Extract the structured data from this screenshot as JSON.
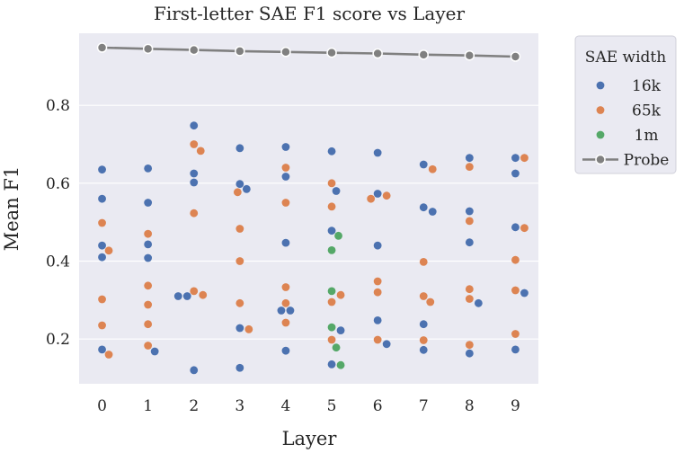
{
  "chart_data": {
    "type": "scatter",
    "title": "First-letter SAE F1 score vs Layer",
    "xlabel": "Layer",
    "ylabel": "Mean F1",
    "x_ticks": [
      "0",
      "1",
      "2",
      "3",
      "4",
      "5",
      "6",
      "7",
      "8",
      "9"
    ],
    "y_ticks": [
      "0.2",
      "0.4",
      "0.6",
      "0.8"
    ],
    "xlim": [
      -0.5,
      9.5
    ],
    "ylim": [
      0.085,
      0.985
    ],
    "grid": true,
    "legend": {
      "title": "SAE width",
      "position": "outside-right",
      "entries": [
        "16k",
        "65k",
        "1m",
        "Probe"
      ]
    },
    "colors": {
      "16k": "#4c72b0",
      "65k": "#dd8452",
      "1m": "#55a868",
      "Probe": "#808080",
      "background": "#eaeaf2",
      "grid": "#ffffff"
    },
    "series": [
      {
        "name": "16k",
        "points": [
          [
            0,
            0.635
          ],
          [
            0,
            0.56
          ],
          [
            0,
            0.44
          ],
          [
            0,
            0.41
          ],
          [
            0,
            0.173
          ],
          [
            1,
            0.638
          ],
          [
            1,
            0.55
          ],
          [
            1,
            0.443
          ],
          [
            1,
            0.408
          ],
          [
            1,
            0.168
          ],
          [
            2,
            0.748
          ],
          [
            2,
            0.625
          ],
          [
            2,
            0.602
          ],
          [
            2,
            0.31
          ],
          [
            2,
            0.31
          ],
          [
            2,
            0.12
          ],
          [
            3,
            0.69
          ],
          [
            3,
            0.598
          ],
          [
            3,
            0.585
          ],
          [
            3,
            0.228
          ],
          [
            3,
            0.126
          ],
          [
            4,
            0.693
          ],
          [
            4,
            0.617
          ],
          [
            4,
            0.447
          ],
          [
            4,
            0.273
          ],
          [
            4,
            0.273
          ],
          [
            4,
            0.17
          ],
          [
            5,
            0.682
          ],
          [
            5,
            0.58
          ],
          [
            5,
            0.478
          ],
          [
            5,
            0.222
          ],
          [
            5,
            0.135
          ],
          [
            6,
            0.678
          ],
          [
            6,
            0.573
          ],
          [
            6,
            0.44
          ],
          [
            6,
            0.248
          ],
          [
            6,
            0.187
          ],
          [
            7,
            0.648
          ],
          [
            7,
            0.538
          ],
          [
            7,
            0.527
          ],
          [
            7,
            0.238
          ],
          [
            7,
            0.172
          ],
          [
            8,
            0.665
          ],
          [
            8,
            0.528
          ],
          [
            8,
            0.448
          ],
          [
            8,
            0.292
          ],
          [
            8,
            0.163
          ],
          [
            9,
            0.665
          ],
          [
            9,
            0.625
          ],
          [
            9,
            0.487
          ],
          [
            9,
            0.318
          ],
          [
            9,
            0.173
          ]
        ]
      },
      {
        "name": "65k",
        "points": [
          [
            0,
            0.498
          ],
          [
            0,
            0.427
          ],
          [
            0,
            0.302
          ],
          [
            0,
            0.235
          ],
          [
            0,
            0.16
          ],
          [
            1,
            0.47
          ],
          [
            1,
            0.337
          ],
          [
            1,
            0.288
          ],
          [
            1,
            0.238
          ],
          [
            1,
            0.183
          ],
          [
            2,
            0.7
          ],
          [
            2,
            0.683
          ],
          [
            2,
            0.523
          ],
          [
            2,
            0.323
          ],
          [
            2,
            0.313
          ],
          [
            3,
            0.577
          ],
          [
            3,
            0.483
          ],
          [
            3,
            0.4
          ],
          [
            3,
            0.292
          ],
          [
            3,
            0.225
          ],
          [
            4,
            0.64
          ],
          [
            4,
            0.55
          ],
          [
            4,
            0.333
          ],
          [
            4,
            0.292
          ],
          [
            4,
            0.242
          ],
          [
            5,
            0.6
          ],
          [
            5,
            0.54
          ],
          [
            5,
            0.313
          ],
          [
            5,
            0.295
          ],
          [
            5,
            0.198
          ],
          [
            6,
            0.568
          ],
          [
            6,
            0.56
          ],
          [
            6,
            0.348
          ],
          [
            6,
            0.32
          ],
          [
            6,
            0.198
          ],
          [
            7,
            0.636
          ],
          [
            7,
            0.398
          ],
          [
            7,
            0.31
          ],
          [
            7,
            0.295
          ],
          [
            7,
            0.197
          ],
          [
            8,
            0.642
          ],
          [
            8,
            0.503
          ],
          [
            8,
            0.328
          ],
          [
            8,
            0.303
          ],
          [
            8,
            0.185
          ],
          [
            9,
            0.665
          ],
          [
            9,
            0.485
          ],
          [
            9,
            0.403
          ],
          [
            9,
            0.325
          ],
          [
            9,
            0.213
          ]
        ]
      },
      {
        "name": "1m",
        "points": [
          [
            5,
            0.465
          ],
          [
            5,
            0.428
          ],
          [
            5,
            0.323
          ],
          [
            5,
            0.23
          ],
          [
            5,
            0.178
          ],
          [
            5,
            0.133
          ]
        ]
      },
      {
        "name": "Probe",
        "points": [
          [
            0,
            0.948
          ],
          [
            1,
            0.945
          ],
          [
            2,
            0.942
          ],
          [
            3,
            0.939
          ],
          [
            4,
            0.937
          ],
          [
            5,
            0.935
          ],
          [
            6,
            0.933
          ],
          [
            7,
            0.93
          ],
          [
            8,
            0.928
          ],
          [
            9,
            0.925
          ]
        ]
      }
    ]
  }
}
